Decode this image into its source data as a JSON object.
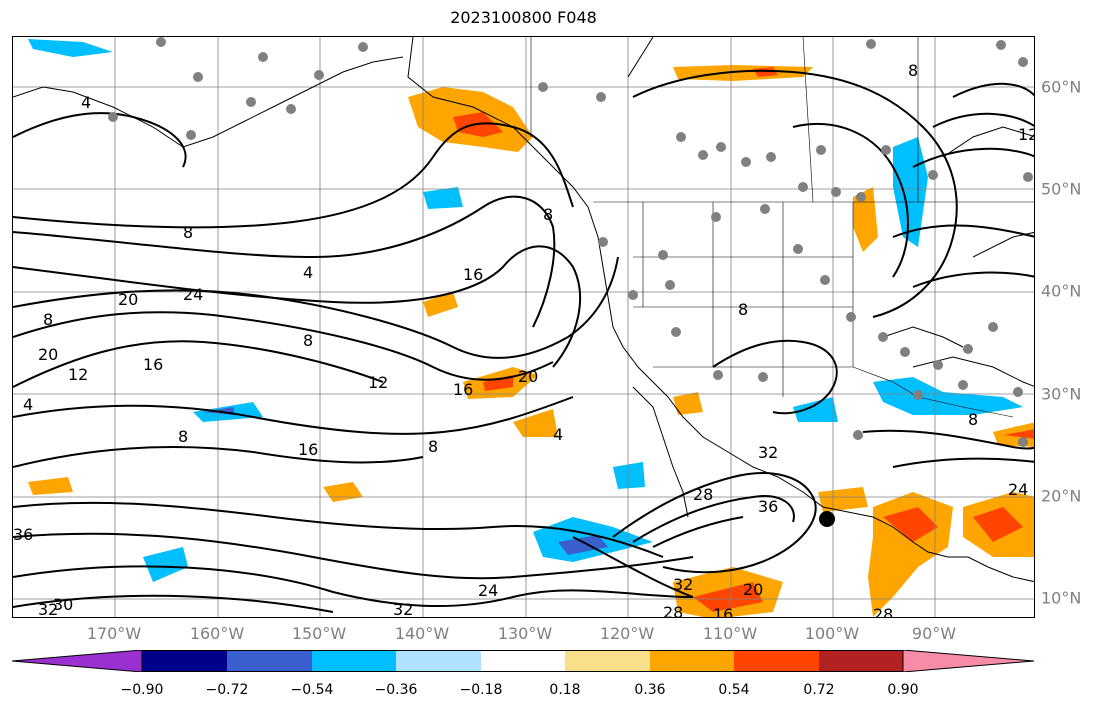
{
  "title": "2023100800 F048",
  "lon_labels": [
    "170°W",
    "160°W",
    "150°W",
    "140°W",
    "130°W",
    "120°W",
    "110°W",
    "100°W",
    "90°W"
  ],
  "lat_labels": [
    "60°N",
    "50°N",
    "40°N",
    "30°N",
    "20°N",
    "10°N"
  ],
  "contour_labels": [
    "4",
    "8",
    "4",
    "8",
    "12",
    "24",
    "16",
    "20",
    "8",
    "16",
    "20",
    "12",
    "16",
    "20",
    "8",
    "12",
    "8",
    "4",
    "16",
    "8",
    "4",
    "28",
    "32",
    "36",
    "32",
    "28",
    "24",
    "16",
    "20",
    "24",
    "28",
    "32",
    "32",
    "36",
    "30",
    "8",
    "8",
    "8"
  ],
  "colorbar": {
    "ticks": [
      "−0.90",
      "−0.72",
      "−0.54",
      "−0.36",
      "−0.18",
      "0.18",
      "0.36",
      "0.54",
      "0.72",
      "0.90"
    ],
    "colors": [
      "#9b30d0",
      "#00008b",
      "#3a5fcd",
      "#00bfff",
      "#b0e2ff",
      "#ffffff",
      "#f8e08a",
      "#ffa500",
      "#ff4500",
      "#b22222",
      "#f78ca8"
    ],
    "under_color": "#9b30d0",
    "over_color": "#f78ca8"
  },
  "palette": {
    "coast": "#000000",
    "grid": "#808080",
    "dots": "#808080",
    "contour": "#000000"
  }
}
